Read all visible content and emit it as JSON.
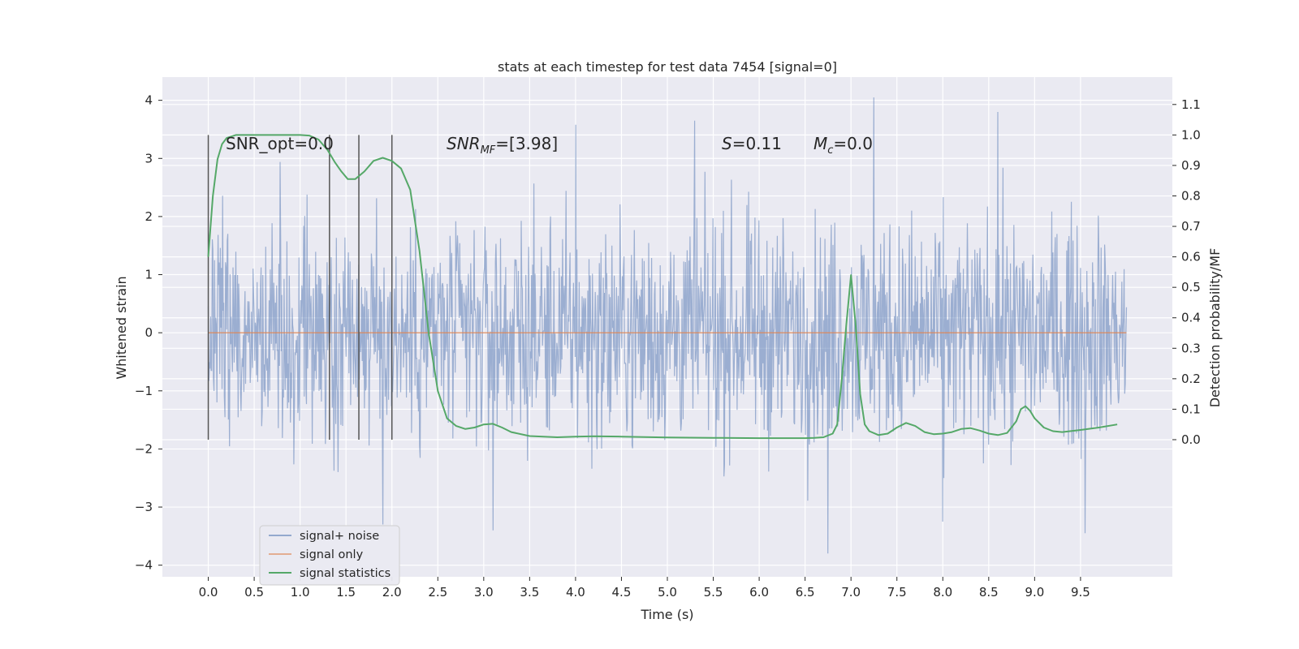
{
  "chart_data": {
    "type": "line",
    "title": "stats at each timestep for test data 7454 [signal=0]",
    "xlabel": "Time (s)",
    "ylabel": "Whitened strain",
    "ylabel_right": "Detection probability/MF",
    "xlim": [
      -0.5,
      10.5
    ],
    "ylim": [
      -4.2,
      4.4
    ],
    "ylim_right": [
      -0.45,
      1.19
    ],
    "x_ticks": [
      "0.0",
      "0.5",
      "1.0",
      "1.5",
      "2.0",
      "2.5",
      "3.0",
      "3.5",
      "4.0",
      "4.5",
      "5.0",
      "5.5",
      "6.0",
      "6.5",
      "7.0",
      "7.5",
      "8.0",
      "8.5",
      "9.0",
      "9.5"
    ],
    "y_ticks": [
      "−4",
      "−3",
      "−2",
      "−1",
      "0",
      "1",
      "2",
      "3",
      "4"
    ],
    "y_right_ticks": [
      "0.0",
      "0.1",
      "0.2",
      "0.3",
      "0.4",
      "0.5",
      "0.6",
      "0.7",
      "0.8",
      "0.9",
      "1.0",
      "1.1"
    ],
    "grid": true,
    "legend_position": "lower-left",
    "annotations": {
      "snr_opt": "SNR_opt=0.0",
      "snr_mf_base": "SNR",
      "snr_mf_sub": "MF",
      "snr_mf_value": "=[3.98]",
      "s_var": "S",
      "s_value": "=0.11",
      "mc_var": "M",
      "mc_sub": "c",
      "mc_value": "=0.0"
    },
    "vertical_markers_x": [
      0.0,
      1.32,
      1.64,
      2.0
    ],
    "series": [
      {
        "name": "signal+ noise",
        "color": "#4c72b0",
        "x_range": [
          0.0,
          10.0
        ],
        "envelope_typical": [
          -1.8,
          2.0
        ],
        "extremes": [
          {
            "x": 7.25,
            "y": 4.05
          },
          {
            "x": 4.0,
            "y": 3.58
          },
          {
            "x": 8.6,
            "y": 3.8
          },
          {
            "x": 5.3,
            "y": 3.65
          },
          {
            "x": 6.75,
            "y": -3.8
          },
          {
            "x": 9.55,
            "y": -3.45
          },
          {
            "x": 3.1,
            "y": -3.4
          },
          {
            "x": 1.9,
            "y": -3.3
          },
          {
            "x": 8.0,
            "y": -3.25
          }
        ]
      },
      {
        "name": "signal only",
        "color": "#dd8452",
        "x": [
          0.0,
          10.0
        ],
        "y": [
          0.0,
          0.0
        ]
      },
      {
        "name": "signal statistics",
        "color": "#55a868",
        "axis": "right",
        "x": [
          0.0,
          0.05,
          0.1,
          0.15,
          0.2,
          0.3,
          0.5,
          0.8,
          1.0,
          1.1,
          1.2,
          1.3,
          1.38,
          1.45,
          1.52,
          1.6,
          1.7,
          1.8,
          1.9,
          2.0,
          2.1,
          2.2,
          2.3,
          2.4,
          2.5,
          2.6,
          2.7,
          2.8,
          2.9,
          3.0,
          3.1,
          3.2,
          3.3,
          3.5,
          3.8,
          4.0,
          4.2,
          4.5,
          5.0,
          5.5,
          6.0,
          6.5,
          6.6,
          6.7,
          6.8,
          6.85,
          6.9,
          6.95,
          7.0,
          7.05,
          7.1,
          7.15,
          7.2,
          7.3,
          7.4,
          7.5,
          7.6,
          7.7,
          7.8,
          7.9,
          8.0,
          8.1,
          8.2,
          8.3,
          8.4,
          8.5,
          8.6,
          8.7,
          8.8,
          8.85,
          8.9,
          8.95,
          9.0,
          9.1,
          9.2,
          9.3,
          9.5,
          9.7,
          9.9
        ],
        "y": [
          0.6,
          0.8,
          0.92,
          0.97,
          0.99,
          1.0,
          1.0,
          1.0,
          1.0,
          0.998,
          0.985,
          0.95,
          0.91,
          0.88,
          0.855,
          0.855,
          0.88,
          0.915,
          0.925,
          0.915,
          0.89,
          0.82,
          0.62,
          0.35,
          0.16,
          0.07,
          0.045,
          0.035,
          0.04,
          0.05,
          0.052,
          0.04,
          0.025,
          0.012,
          0.008,
          0.01,
          0.011,
          0.01,
          0.007,
          0.006,
          0.005,
          0.005,
          0.006,
          0.008,
          0.02,
          0.05,
          0.2,
          0.38,
          0.54,
          0.38,
          0.15,
          0.05,
          0.028,
          0.015,
          0.02,
          0.04,
          0.055,
          0.045,
          0.025,
          0.018,
          0.02,
          0.025,
          0.035,
          0.038,
          0.03,
          0.02,
          0.015,
          0.022,
          0.06,
          0.1,
          0.11,
          0.095,
          0.07,
          0.04,
          0.028,
          0.025,
          0.032,
          0.04,
          0.05
        ]
      }
    ]
  }
}
